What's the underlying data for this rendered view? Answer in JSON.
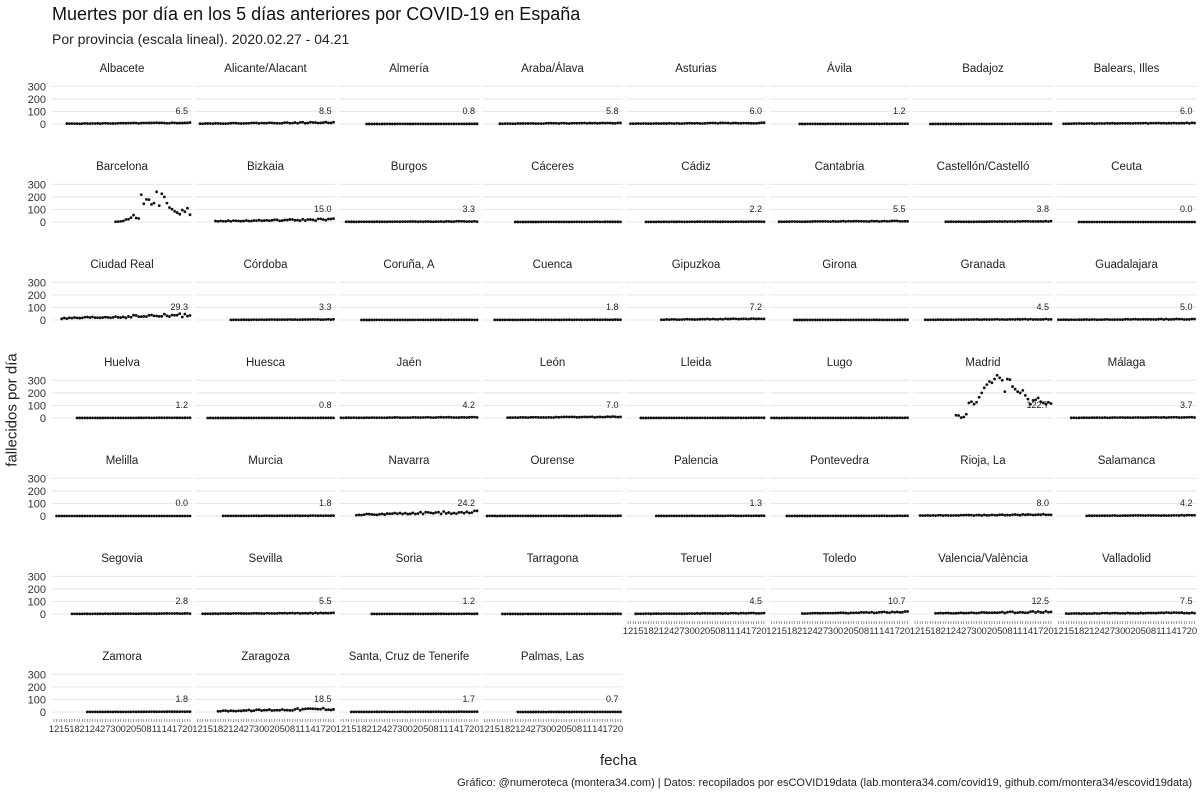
{
  "title": "Muertes por día en los 5 días anteriores por COVID-19 en España",
  "subtitle": "Por provincia (escala lineal). 2020.02.27 - 04.21",
  "caption": "Gráfico: @numeroteca (montera34.com) | Datos: recopilados por esCOVID19data (lab.montera34.com/covid19, github.com/montera34/escovid19data)",
  "chart_data": {
    "type": "scatter",
    "xlabel": "fecha",
    "ylabel": "fallecidos por día",
    "ylim": [
      0,
      350
    ],
    "yticks": [
      0,
      100,
      200,
      300
    ],
    "xticks": [
      "12",
      "15",
      "18",
      "21",
      "24",
      "27",
      "30",
      "02",
      "05",
      "08",
      "11",
      "14",
      "17",
      "20"
    ],
    "grid": true,
    "panels": [
      {
        "name": "Albacete",
        "last_label": "6.5"
      },
      {
        "name": "Alicante/Alacant",
        "last_label": "8.5"
      },
      {
        "name": "Almería",
        "last_label": "0.8"
      },
      {
        "name": "Araba/Álava",
        "last_label": "5.8"
      },
      {
        "name": "Asturias",
        "last_label": "6.0"
      },
      {
        "name": "Ávila",
        "last_label": "1.2"
      },
      {
        "name": "Badajoz",
        "last_label": ""
      },
      {
        "name": "Balears, Illes",
        "last_label": "6.0"
      },
      {
        "name": "Barcelona",
        "last_label": "",
        "values": [
          2,
          3,
          5,
          8,
          20,
          22,
          35,
          55,
          32,
          28,
          218,
          145,
          180,
          178,
          140,
          150,
          240,
          130,
          225,
          200,
          150,
          115,
          102,
          85,
          75,
          62,
          95,
          82,
          110,
          58
        ]
      },
      {
        "name": "Bizkaia",
        "last_label": "15.0"
      },
      {
        "name": "Burgos",
        "last_label": "3.3"
      },
      {
        "name": "Cáceres",
        "last_label": ""
      },
      {
        "name": "Cádiz",
        "last_label": "2.2"
      },
      {
        "name": "Cantabria",
        "last_label": "5.5"
      },
      {
        "name": "Castellón/Castelló",
        "last_label": "3.8"
      },
      {
        "name": "Ceuta",
        "last_label": "0.0"
      },
      {
        "name": "Ciudad Real",
        "last_label": "29.3"
      },
      {
        "name": "Córdoba",
        "last_label": "3.3"
      },
      {
        "name": "Coruña, A",
        "last_label": ""
      },
      {
        "name": "Cuenca",
        "last_label": "1.8"
      },
      {
        "name": "Gipuzkoa",
        "last_label": "7.2"
      },
      {
        "name": "Girona",
        "last_label": ""
      },
      {
        "name": "Granada",
        "last_label": "4.5"
      },
      {
        "name": "Guadalajara",
        "last_label": "5.0"
      },
      {
        "name": "Huelva",
        "last_label": "1.2"
      },
      {
        "name": "Huesca",
        "last_label": "0.8"
      },
      {
        "name": "Jaén",
        "last_label": "4.2"
      },
      {
        "name": "León",
        "last_label": "7.0"
      },
      {
        "name": "Lleida",
        "last_label": ""
      },
      {
        "name": "Lugo",
        "last_label": ""
      },
      {
        "name": "Madrid",
        "last_label": "122.7",
        "values": [
          22,
          20,
          3,
          8,
          30,
          120,
          130,
          110,
          125,
          165,
          200,
          240,
          265,
          290,
          280,
          310,
          340,
          320,
          300,
          210,
          310,
          305,
          250,
          230,
          210,
          200,
          220,
          180,
          150,
          110,
          140,
          145,
          160,
          130,
          120,
          110,
          125,
          115
        ]
      },
      {
        "name": "Málaga",
        "last_label": "3.7"
      },
      {
        "name": "Melilla",
        "last_label": "0.0"
      },
      {
        "name": "Murcia",
        "last_label": "1.8"
      },
      {
        "name": "Navarra",
        "last_label": "24.2"
      },
      {
        "name": "Ourense",
        "last_label": ""
      },
      {
        "name": "Palencia",
        "last_label": "1.3"
      },
      {
        "name": "Pontevedra",
        "last_label": ""
      },
      {
        "name": "Rioja, La",
        "last_label": "8.0"
      },
      {
        "name": "Salamanca",
        "last_label": "4.2"
      },
      {
        "name": "Segovia",
        "last_label": "2.8"
      },
      {
        "name": "Sevilla",
        "last_label": "5.5"
      },
      {
        "name": "Soria",
        "last_label": "1.2"
      },
      {
        "name": "Tarragona",
        "last_label": ""
      },
      {
        "name": "Teruel",
        "last_label": "4.5"
      },
      {
        "name": "Toledo",
        "last_label": "10.7"
      },
      {
        "name": "Valencia/València",
        "last_label": "12.5"
      },
      {
        "name": "Valladolid",
        "last_label": "7.5"
      },
      {
        "name": "Zamora",
        "last_label": "1.8"
      },
      {
        "name": "Zaragoza",
        "last_label": "18.5"
      },
      {
        "name": "Santa, Cruz de Tenerife",
        "last_label": "1.7"
      },
      {
        "name": "Palmas, Las",
        "last_label": "0.7"
      }
    ]
  }
}
